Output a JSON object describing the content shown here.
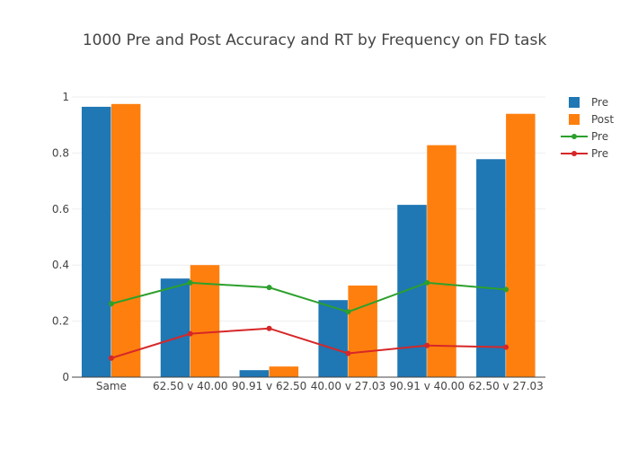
{
  "chart_data": {
    "type": "bar",
    "title": "1000 Pre and Post Accuracy and RT by Frequency on FD task",
    "xlabel": "",
    "ylabel": "",
    "ylim": [
      0,
      1
    ],
    "yticks": [
      "0",
      "0.2",
      "0.4",
      "0.6",
      "0.8",
      "1"
    ],
    "ytick_values": [
      0,
      0.2,
      0.4,
      0.6,
      0.8,
      1
    ],
    "categories": [
      "Same",
      "62.50 v 40.00",
      "90.91 v 62.50",
      "40.00 v 27.03",
      "90.91 v 40.00",
      "62.50 v 27.03"
    ],
    "grid": true,
    "legend_position": "top-right",
    "series": [
      {
        "name": "Pre",
        "kind": "bar",
        "color": "#1f77b4",
        "values": [
          0.965,
          0.352,
          0.025,
          0.275,
          0.615,
          0.778
        ]
      },
      {
        "name": "Post",
        "kind": "bar",
        "color": "#ff7f0e",
        "values": [
          0.975,
          0.4,
          0.038,
          0.327,
          0.828,
          0.94
        ]
      },
      {
        "name": "Pre",
        "kind": "line",
        "color": "#2ca02c",
        "values": [
          0.262,
          0.337,
          0.32,
          0.233,
          0.337,
          0.313
        ]
      },
      {
        "name": "Pre",
        "kind": "line",
        "color": "#d62728",
        "values": [
          0.068,
          0.155,
          0.174,
          0.085,
          0.113,
          0.107
        ]
      }
    ]
  }
}
